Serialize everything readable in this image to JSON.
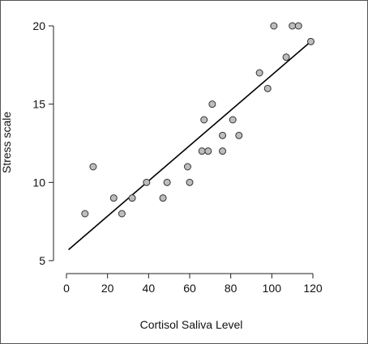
{
  "chart_data": {
    "type": "scatter",
    "title": "",
    "xlabel": "Cortisol Saliva Level",
    "ylabel": "Stress scale",
    "xlim": [
      0,
      120
    ],
    "ylim": [
      5,
      20
    ],
    "x_ticks": [
      0,
      20,
      40,
      60,
      80,
      100,
      120
    ],
    "y_ticks": [
      5,
      10,
      15,
      20
    ],
    "grid": false,
    "legend": "none",
    "marker_fill": "#bdbdbd",
    "marker_stroke": "#333333",
    "line_color": "#000000",
    "series": [
      {
        "points": [
          {
            "x": 9,
            "y": 8
          },
          {
            "x": 13,
            "y": 11
          },
          {
            "x": 23,
            "y": 9
          },
          {
            "x": 27,
            "y": 8
          },
          {
            "x": 32,
            "y": 9
          },
          {
            "x": 39,
            "y": 10
          },
          {
            "x": 47,
            "y": 9
          },
          {
            "x": 49,
            "y": 10
          },
          {
            "x": 59,
            "y": 11
          },
          {
            "x": 60,
            "y": 10
          },
          {
            "x": 66,
            "y": 12
          },
          {
            "x": 67,
            "y": 14
          },
          {
            "x": 69,
            "y": 12
          },
          {
            "x": 71,
            "y": 15
          },
          {
            "x": 76,
            "y": 12
          },
          {
            "x": 76,
            "y": 13
          },
          {
            "x": 81,
            "y": 14
          },
          {
            "x": 84,
            "y": 13
          },
          {
            "x": 94,
            "y": 17
          },
          {
            "x": 98,
            "y": 16
          },
          {
            "x": 101,
            "y": 20
          },
          {
            "x": 107,
            "y": 18
          },
          {
            "x": 110,
            "y": 20
          },
          {
            "x": 113,
            "y": 20
          },
          {
            "x": 119,
            "y": 19
          }
        ]
      }
    ],
    "fit_line": {
      "x": [
        1,
        119
      ],
      "y": [
        5.7,
        19
      ]
    }
  }
}
